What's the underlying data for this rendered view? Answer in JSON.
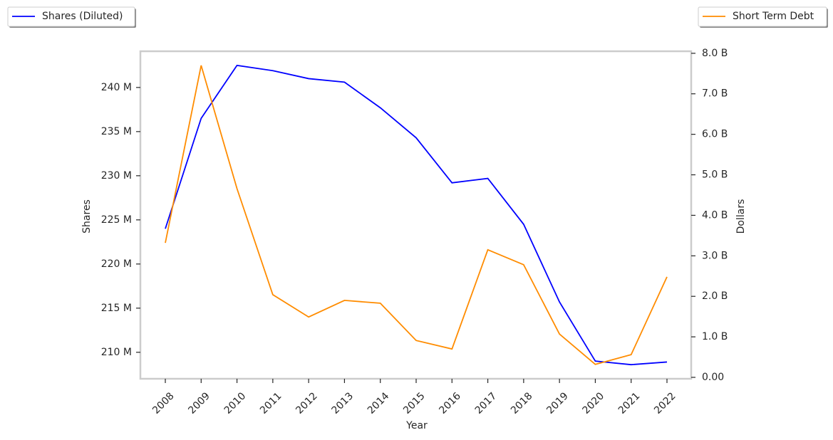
{
  "chart_data": {
    "type": "line",
    "x_label": "Year",
    "y_label": "Shares",
    "y2_label": "Dollars",
    "categories": [
      "2008",
      "2009",
      "2010",
      "2011",
      "2012",
      "2013",
      "2014",
      "2015",
      "2016",
      "2017",
      "2018",
      "2019",
      "2020",
      "2021",
      "2022"
    ],
    "series": [
      {
        "name": "Shares (Diluted)",
        "color": "#0000ff",
        "axis": "y",
        "values": [
          224000000,
          236500000,
          242500000,
          241900000,
          241000000,
          240600000,
          237700000,
          234300000,
          229200000,
          229700000,
          224500000,
          215700000,
          209000000,
          208600000,
          208900000
        ]
      },
      {
        "name": "Short Term Debt",
        "color": "#ff8c00",
        "axis": "y2",
        "values": [
          3320000000,
          7700000000,
          4660000000,
          2040000000,
          1490000000,
          1900000000,
          1830000000,
          910000000,
          700000000,
          3150000000,
          2780000000,
          1070000000,
          320000000,
          560000000,
          2480000000
        ]
      }
    ],
    "ylim": [
      207000000,
      244100000
    ],
    "yticks": [
      {
        "value": 210000000,
        "label": "210 M"
      },
      {
        "value": 215000000,
        "label": "215 M"
      },
      {
        "value": 220000000,
        "label": "220 M"
      },
      {
        "value": 225000000,
        "label": "225 M"
      },
      {
        "value": 230000000,
        "label": "230 M"
      },
      {
        "value": 235000000,
        "label": "235 M"
      },
      {
        "value": 240000000,
        "label": "240 M"
      }
    ],
    "y2lim": [
      -35000000,
      8050000000
    ],
    "y2ticks": [
      {
        "value": 0,
        "label": "0.00"
      },
      {
        "value": 1000000000,
        "label": "1.0 B"
      },
      {
        "value": 2000000000,
        "label": "2.0 B"
      },
      {
        "value": 3000000000,
        "label": "3.0 B"
      },
      {
        "value": 4000000000,
        "label": "4.0 B"
      },
      {
        "value": 5000000000,
        "label": "5.0 B"
      },
      {
        "value": 6000000000,
        "label": "6.0 B"
      },
      {
        "value": 7000000000,
        "label": "7.0 B"
      },
      {
        "value": 8000000000,
        "label": "8.0 B"
      }
    ],
    "grid": false
  }
}
